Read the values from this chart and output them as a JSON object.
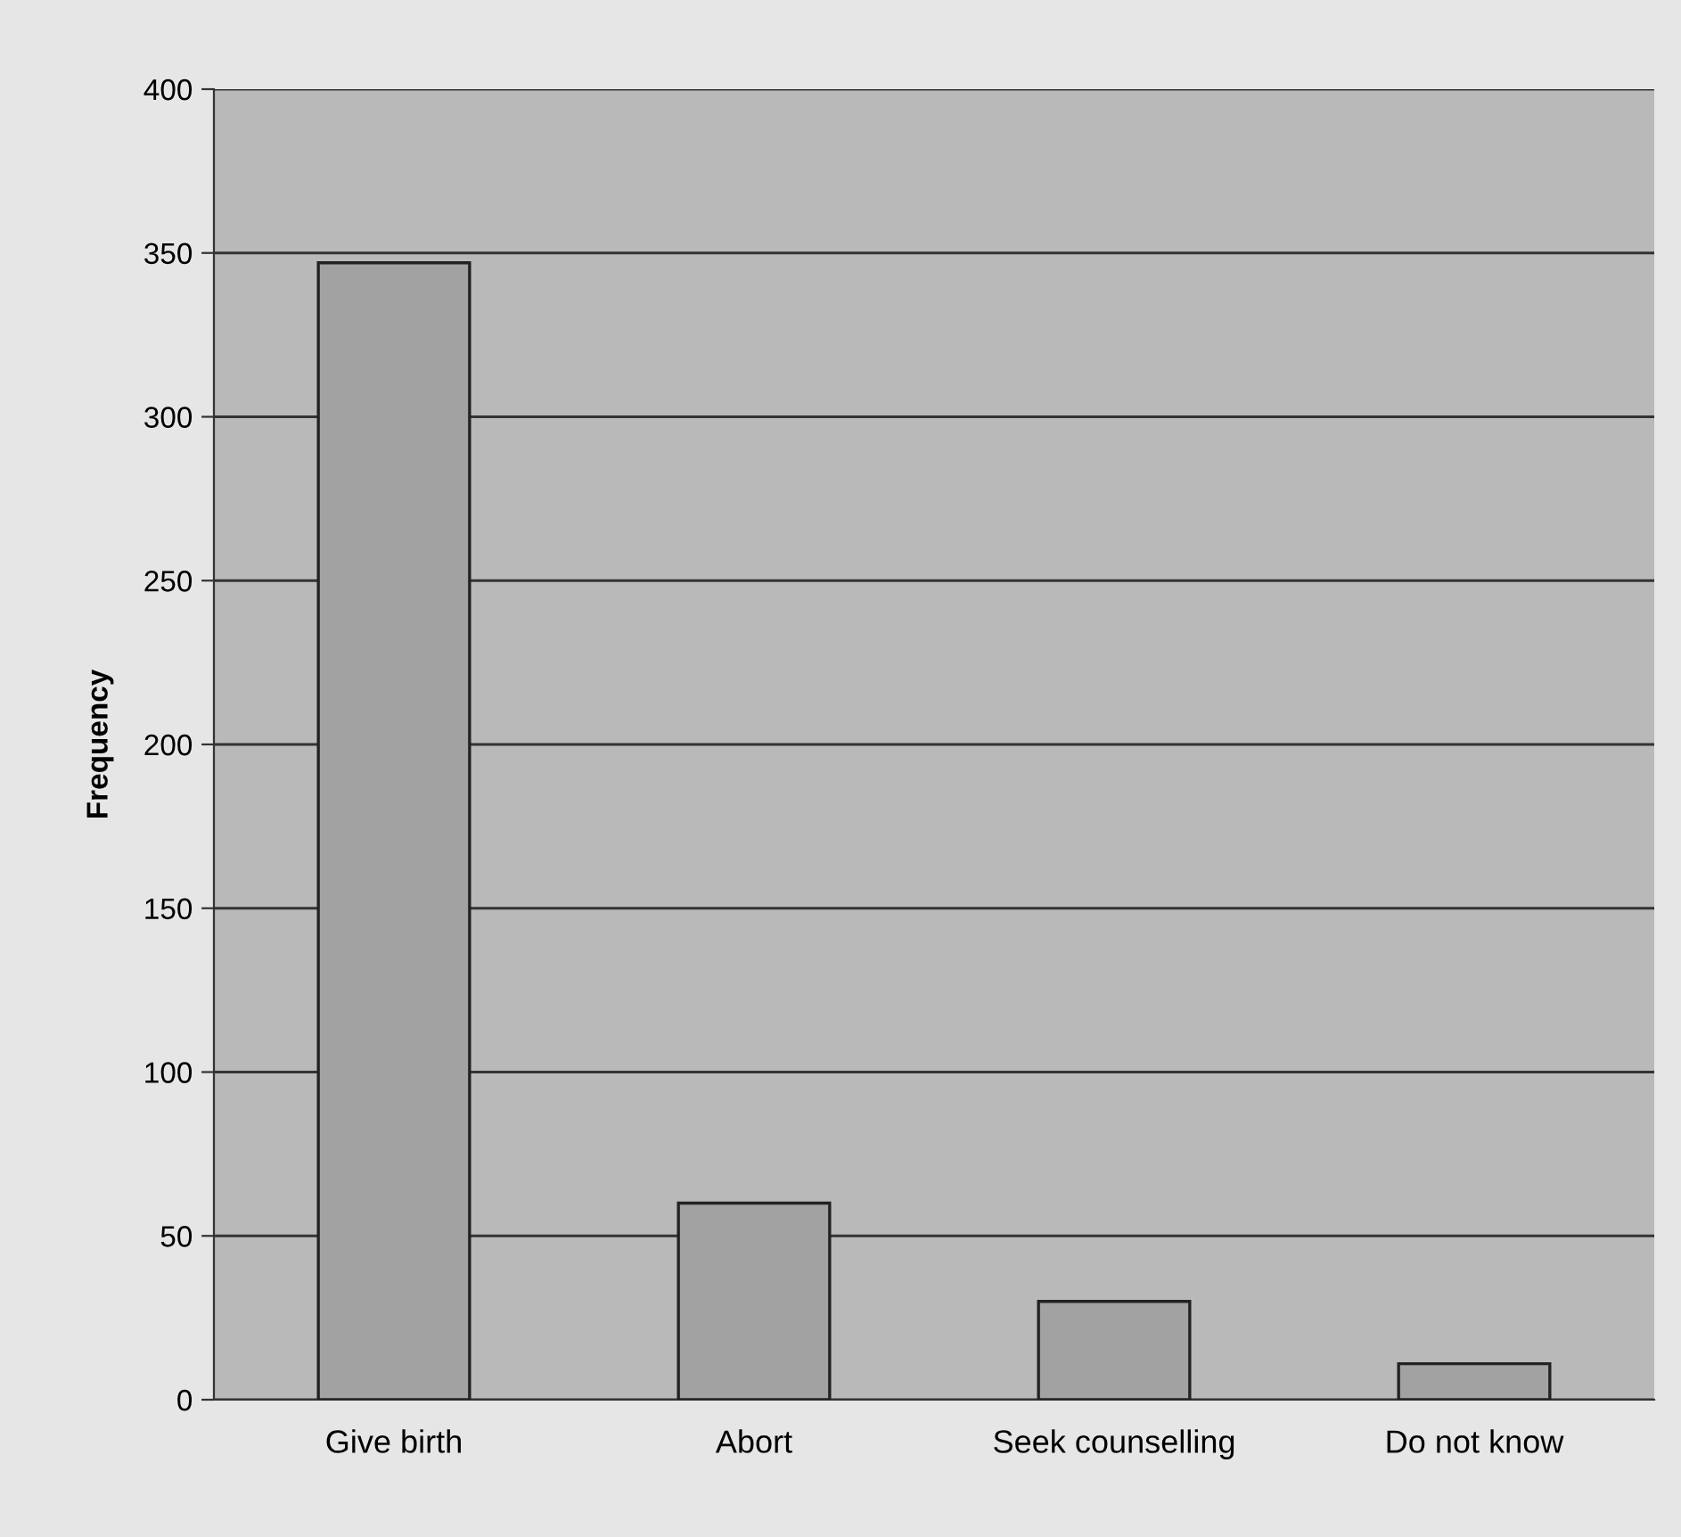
{
  "chart_data": {
    "type": "bar",
    "ylabel": "Frequency",
    "categories": [
      "Give birth",
      "Abort",
      "Seek counselling",
      "Do not know"
    ],
    "values": [
      347,
      60,
      30,
      11
    ],
    "color": "#a2a2a2",
    "ylim": [
      0,
      400
    ],
    "yticks": [
      0,
      50,
      100,
      150,
      200,
      250,
      300,
      350,
      400
    ],
    "grid": "y",
    "legend": false
  }
}
